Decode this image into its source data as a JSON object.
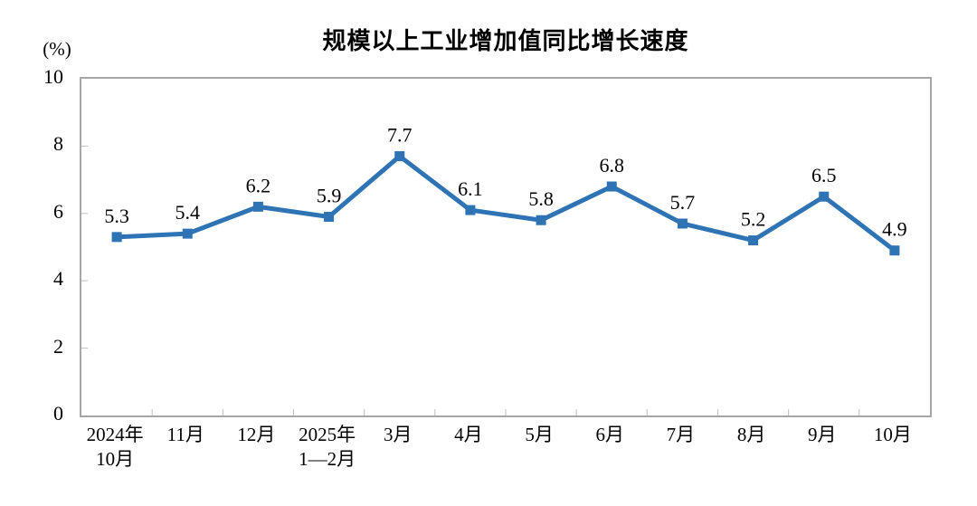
{
  "chart_data": {
    "type": "line",
    "title": "规模以上工业增加值同比增长速度",
    "unit_label": "(%)",
    "categories": [
      "2024年\n10月",
      "11月",
      "12月",
      "2025年\n1—2月",
      "3月",
      "4月",
      "5月",
      "6月",
      "7月",
      "8月",
      "9月",
      "10月"
    ],
    "values": [
      5.3,
      5.4,
      6.2,
      5.9,
      7.7,
      6.1,
      5.8,
      6.8,
      5.7,
      5.2,
      6.5,
      4.9
    ],
    "value_labels": [
      "5.3",
      "5.4",
      "6.2",
      "5.9",
      "7.7",
      "6.1",
      "5.8",
      "6.8",
      "5.7",
      "5.2",
      "6.5",
      "4.9"
    ],
    "ylim": [
      0,
      10
    ],
    "yticks": [
      0,
      2,
      4,
      6,
      8,
      10
    ],
    "grid": false,
    "legend": "none",
    "marker": "square",
    "colors": {
      "line": "#2E74B5",
      "marker": "#2E74B5",
      "plot_border": "#A6A6A6",
      "tick": "#BFBFBF",
      "text": "#000000",
      "background": "#FFFFFF"
    }
  }
}
